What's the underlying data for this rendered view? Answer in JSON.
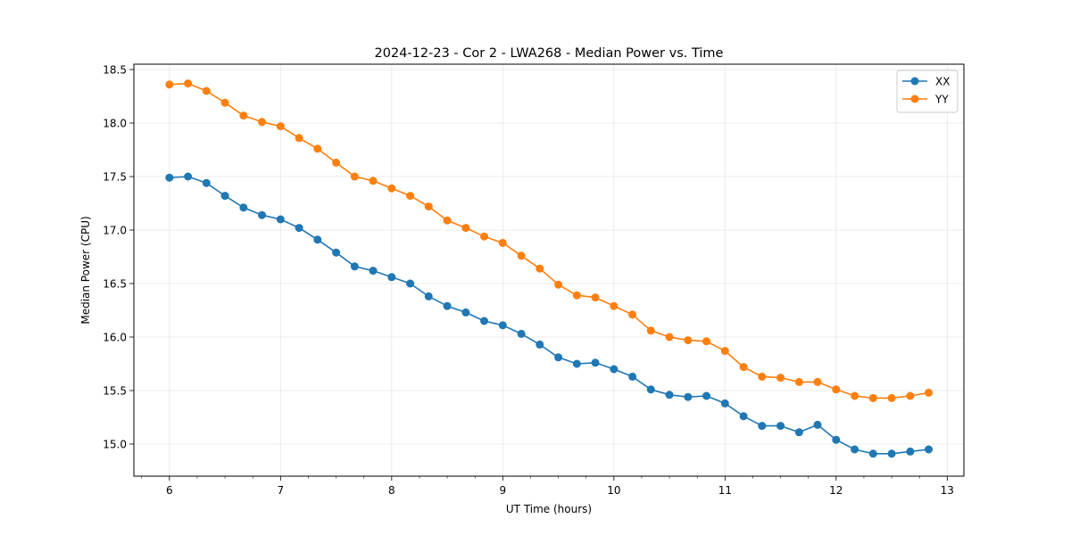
{
  "chart_data": {
    "type": "line",
    "title": "2024-12-23 - Cor 2 - LWA268 - Median Power vs. Time",
    "xlabel": "UT Time (hours)",
    "ylabel": "Median Power (CPU)",
    "xlim": [
      5.68,
      13.15
    ],
    "ylim": [
      14.7,
      18.55
    ],
    "xticks": [
      6,
      7,
      8,
      9,
      10,
      11,
      12,
      13
    ],
    "xtick_labels": [
      "6",
      "7",
      "8",
      "9",
      "10",
      "11",
      "12",
      "13"
    ],
    "x_minor_step": 0.25,
    "yticks": [
      15.0,
      15.5,
      16.0,
      16.5,
      17.0,
      17.5,
      18.0,
      18.5
    ],
    "ytick_labels": [
      "15.0",
      "15.5",
      "16.0",
      "16.5",
      "17.0",
      "17.5",
      "18.0",
      "18.5"
    ],
    "grid": true,
    "legend_position": "top-right",
    "x": [
      6.0,
      6.167,
      6.333,
      6.5,
      6.667,
      6.833,
      7.0,
      7.167,
      7.333,
      7.5,
      7.667,
      7.833,
      8.0,
      8.167,
      8.333,
      8.5,
      8.667,
      8.833,
      9.0,
      9.167,
      9.333,
      9.5,
      9.667,
      9.833,
      10.0,
      10.167,
      10.333,
      10.5,
      10.667,
      10.833,
      11.0,
      11.167,
      11.333,
      11.5,
      11.667,
      11.833,
      12.0,
      12.167,
      12.333,
      12.5,
      12.667,
      12.833
    ],
    "series": [
      {
        "name": "XX",
        "color": "#1f77b4",
        "values": [
          17.49,
          17.5,
          17.44,
          17.32,
          17.21,
          17.14,
          17.1,
          17.02,
          16.91,
          16.79,
          16.66,
          16.62,
          16.56,
          16.5,
          16.38,
          16.29,
          16.23,
          16.15,
          16.11,
          16.03,
          15.93,
          15.81,
          15.75,
          15.76,
          15.7,
          15.63,
          15.51,
          15.46,
          15.44,
          15.45,
          15.38,
          15.26,
          15.17,
          15.17,
          15.11,
          15.18,
          15.04,
          14.95,
          14.91,
          14.91,
          14.93,
          14.95
        ]
      },
      {
        "name": "YY",
        "color": "#ff7f0e",
        "values": [
          18.36,
          18.37,
          18.3,
          18.19,
          18.07,
          18.01,
          17.97,
          17.86,
          17.76,
          17.63,
          17.5,
          17.46,
          17.39,
          17.32,
          17.22,
          17.09,
          17.02,
          16.94,
          16.88,
          16.76,
          16.64,
          16.49,
          16.39,
          16.37,
          16.29,
          16.21,
          16.06,
          16.0,
          15.97,
          15.96,
          15.87,
          15.72,
          15.63,
          15.62,
          15.58,
          15.58,
          15.51,
          15.45,
          15.43,
          15.43,
          15.45,
          15.48
        ]
      }
    ]
  }
}
